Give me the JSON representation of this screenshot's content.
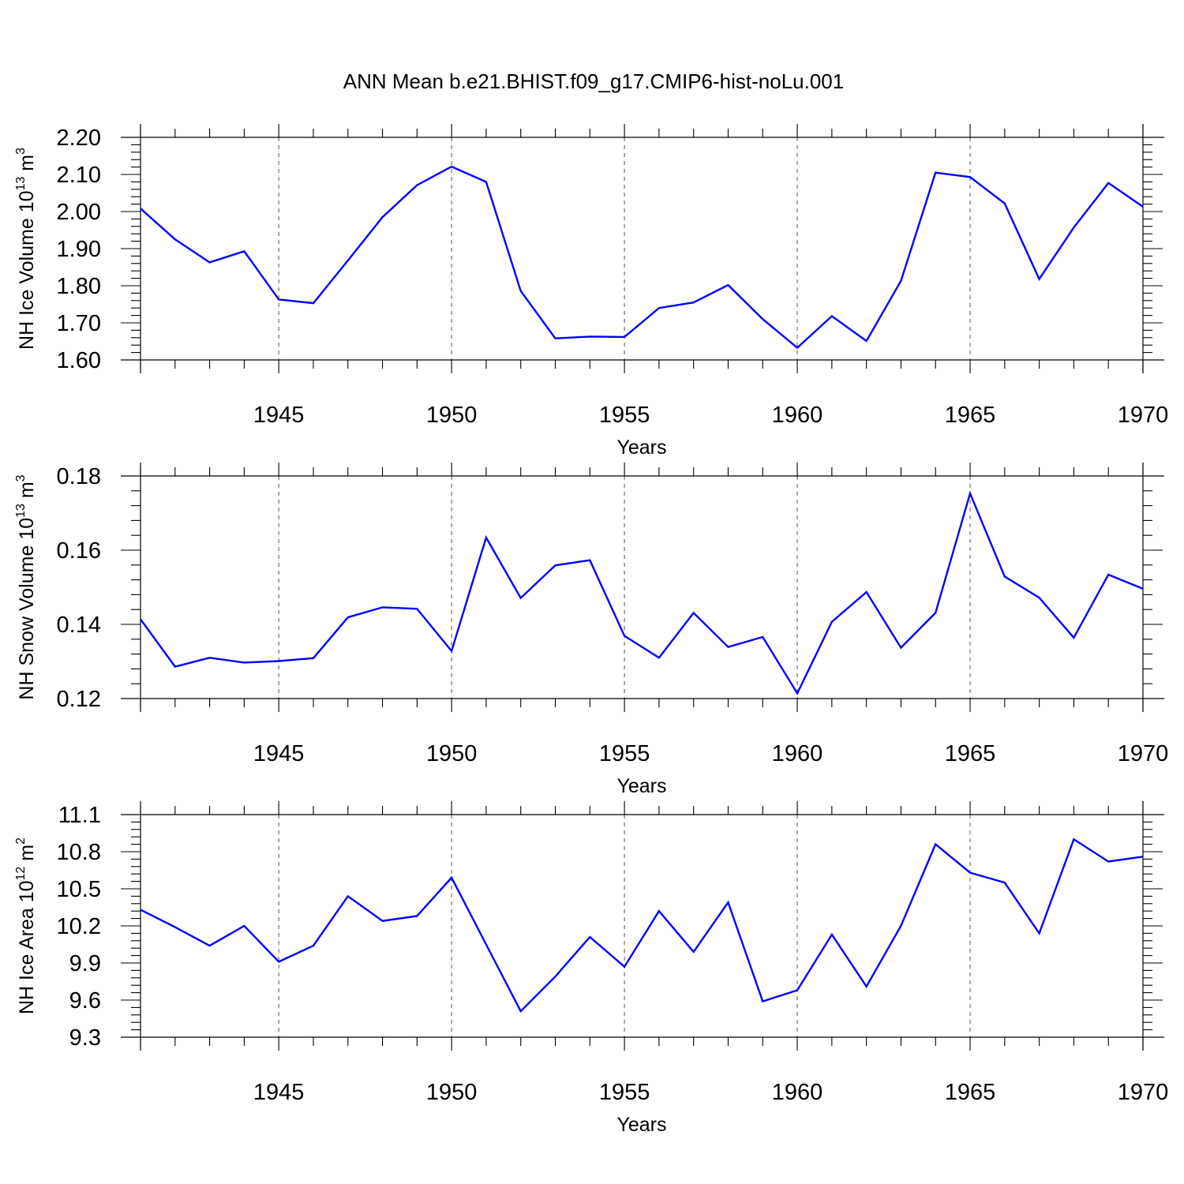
{
  "title": "ANN Mean b.e21.BHIST.f09_g17.CMIP6-hist-noLu.001",
  "line_color": "#0000ff",
  "chart_data": [
    {
      "type": "line",
      "ylabel": "NH Ice Volume 10",
      "ylabel_exp": "13",
      "ylabel_unit": " m",
      "ylabel_unit_exp": "3",
      "xlabel": "Years",
      "xlim": [
        1941,
        1970
      ],
      "ylim": [
        1.6,
        2.2
      ],
      "yticks": [
        "1.60",
        "1.70",
        "1.80",
        "1.90",
        "2.00",
        "2.10",
        "2.20"
      ],
      "xticks": [
        "1945",
        "1950",
        "1955",
        "1960",
        "1965",
        "1970"
      ],
      "x": [
        1941,
        1942,
        1943,
        1944,
        1945,
        1946,
        1947,
        1948,
        1949,
        1950,
        1951,
        1952,
        1953,
        1954,
        1955,
        1956,
        1957,
        1958,
        1959,
        1960,
        1961,
        1962,
        1963,
        1964,
        1965,
        1966,
        1967,
        1968,
        1969,
        1970
      ],
      "values": [
        2.008,
        1.925,
        1.863,
        1.893,
        1.763,
        1.753,
        1.868,
        1.985,
        2.071,
        2.121,
        2.08,
        1.786,
        1.658,
        1.663,
        1.662,
        1.74,
        1.755,
        1.802,
        1.71,
        1.633,
        1.718,
        1.651,
        1.813,
        2.105,
        2.093,
        2.022,
        1.818,
        1.957,
        2.077,
        2.013
      ]
    },
    {
      "type": "line",
      "ylabel": "NH Snow Volume 10",
      "ylabel_exp": "13",
      "ylabel_unit": " m",
      "ylabel_unit_exp": "3",
      "xlabel": "Years",
      "xlim": [
        1941,
        1970
      ],
      "ylim": [
        0.12,
        0.18
      ],
      "yticks": [
        "0.12",
        "0.14",
        "0.16",
        "0.18"
      ],
      "xticks": [
        "1945",
        "1950",
        "1955",
        "1960",
        "1965",
        "1970"
      ],
      "x": [
        1941,
        1942,
        1943,
        1944,
        1945,
        1946,
        1947,
        1948,
        1949,
        1950,
        1951,
        1952,
        1953,
        1954,
        1955,
        1956,
        1957,
        1958,
        1959,
        1960,
        1961,
        1962,
        1963,
        1964,
        1965,
        1966,
        1967,
        1968,
        1969,
        1970
      ],
      "values": [
        0.1414,
        0.1286,
        0.131,
        0.1297,
        0.1301,
        0.1309,
        0.1419,
        0.1446,
        0.1442,
        0.1328,
        0.1634,
        0.1471,
        0.1559,
        0.1573,
        0.1369,
        0.131,
        0.1431,
        0.1339,
        0.1366,
        0.1214,
        0.1407,
        0.1487,
        0.1337,
        0.1431,
        0.1753,
        0.1529,
        0.1472,
        0.1364,
        0.1534,
        0.1496
      ]
    },
    {
      "type": "line",
      "ylabel": "NH Ice Area 10",
      "ylabel_exp": "12",
      "ylabel_unit": " m",
      "ylabel_unit_exp": "2",
      "xlabel": "Years",
      "xlim": [
        1941,
        1970
      ],
      "ylim": [
        9.3,
        11.1
      ],
      "yticks": [
        "9.3",
        "9.6",
        "9.9",
        "10.2",
        "10.5",
        "10.8",
        "11.1"
      ],
      "xticks": [
        "1945",
        "1950",
        "1955",
        "1960",
        "1965",
        "1970"
      ],
      "x": [
        1941,
        1942,
        1943,
        1944,
        1945,
        1946,
        1947,
        1948,
        1949,
        1950,
        1951,
        1952,
        1953,
        1954,
        1955,
        1956,
        1957,
        1958,
        1959,
        1960,
        1961,
        1962,
        1963,
        1964,
        1965,
        1966,
        1967,
        1968,
        1969,
        1970
      ],
      "values": [
        10.33,
        10.19,
        10.04,
        10.2,
        9.91,
        10.04,
        10.44,
        10.24,
        10.28,
        10.59,
        10.05,
        9.51,
        9.79,
        10.11,
        9.87,
        10.32,
        9.99,
        10.39,
        9.59,
        9.68,
        10.13,
        9.71,
        10.2,
        10.86,
        10.63,
        10.55,
        10.14,
        10.9,
        10.72,
        10.76
      ]
    }
  ]
}
